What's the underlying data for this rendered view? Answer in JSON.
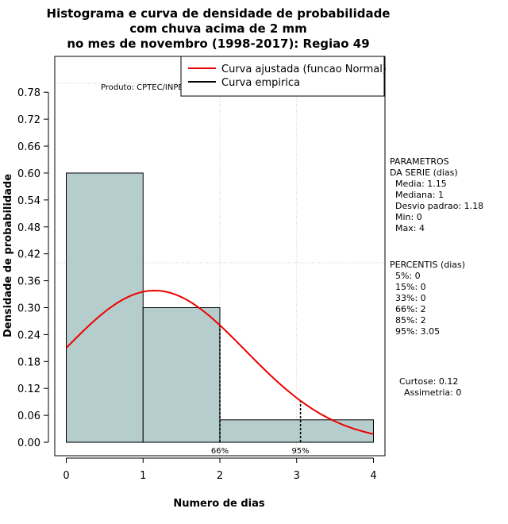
{
  "chart_data": {
    "type": "bar",
    "title_lines": [
      "Histograma e curva de densidade de probabilidade",
      "com chuva acima de 2 mm",
      "no mes de novembro (1998-2017): Regiao 49"
    ],
    "xlabel": "Numero de dias",
    "ylabel": "Densidade de probabilidade",
    "xlim": [
      -0.15,
      4.15
    ],
    "ylim": [
      -0.03,
      0.86
    ],
    "xticks": [
      0,
      1,
      2,
      3,
      4
    ],
    "yticks": [
      0.0,
      0.06,
      0.12,
      0.18,
      0.24,
      0.3,
      0.36,
      0.42,
      0.48,
      0.54,
      0.6,
      0.66,
      0.72,
      0.78
    ],
    "ytick_labels": [
      "0.00",
      "0.06",
      "0.12",
      "0.18",
      "0.24",
      "0.30",
      "0.36",
      "0.42",
      "0.48",
      "0.54",
      "0.60",
      "0.66",
      "0.72",
      "0.78"
    ],
    "bins": [
      {
        "from": 0,
        "to": 1,
        "density": 0.6
      },
      {
        "from": 1,
        "to": 2,
        "density": 0.3
      },
      {
        "from": 2,
        "to": 4,
        "density": 0.05
      }
    ],
    "bar_color": "#b5cdcd",
    "normal_fit": {
      "mean": 1.15,
      "sd": 1.18,
      "x_from": 0,
      "x_to": 4,
      "color": "#ee0000"
    },
    "grid": {
      "x": [
        2,
        3
      ],
      "y": [
        0.4,
        0.8
      ]
    },
    "percentile_markers": [
      {
        "x": 2,
        "label": "66%"
      },
      {
        "x": 3.05,
        "label": "95%"
      }
    ],
    "credit": "Produto: CPTEC/INPE",
    "legend": [
      {
        "label": "Curva ajustada (funcao Normal)",
        "color": "#ee0000"
      },
      {
        "label": "Curva empirica",
        "color": "#000000"
      }
    ],
    "legend_position": "top-right"
  },
  "side_panel": {
    "parametros": [
      "PARAMETROS",
      "DA SERIE (dias)",
      "Media: 1.15",
      "Mediana: 1",
      "Desvio padrao: 1.18",
      "Min: 0",
      "Max: 4"
    ],
    "percentis": [
      "PERCENTIS (dias)",
      "5%: 0",
      "15%: 0",
      "33%: 0",
      "66%: 2",
      "85%: 2",
      "95%: 3.05"
    ],
    "shape": [
      "Curtose: 0.12",
      "Assimetria: 0"
    ]
  }
}
